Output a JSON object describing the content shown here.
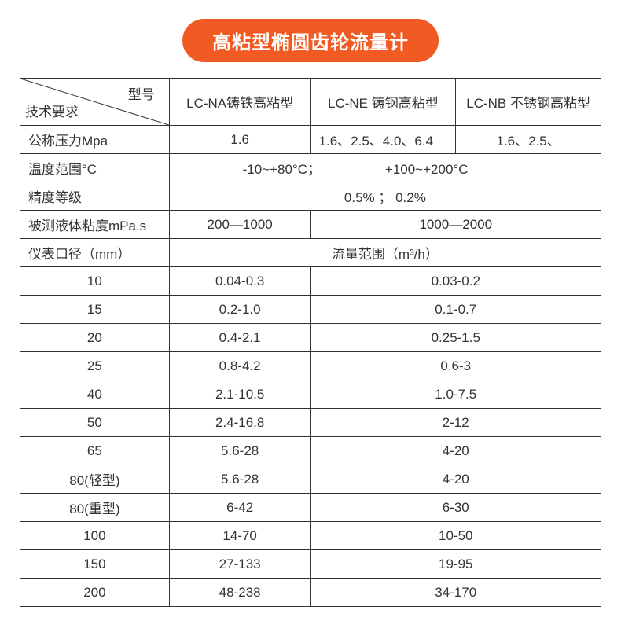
{
  "title": "高粘型椭圆齿轮流量计",
  "colors": {
    "accent": "#f15a22",
    "accent_text": "#ffffff",
    "border": "#333333",
    "text": "#333333",
    "background": "#ffffff"
  },
  "header_cell": {
    "top_label": "型号",
    "bottom_label": "技术要求"
  },
  "model_columns": [
    "LC-NA铸铁高粘型",
    "LC-NE 铸钢高粘型",
    "LC-NB 不锈钢高粘型"
  ],
  "spec_rows": {
    "pressure": {
      "label": "公称压力Mpa",
      "values": [
        "1.6",
        "1.6、2.5、4.0、6.4",
        "1.6、2.5、"
      ]
    },
    "temperature": {
      "label": "温度范围°C",
      "value_left": "-10~+80°C；",
      "value_right": "+100~+200°C"
    },
    "accuracy": {
      "label": "精度等级",
      "value": "0.5%    ；    0.2%"
    },
    "viscosity": {
      "label": "被测液体粘度mPa.s",
      "value_a": "200—1000",
      "value_b": "1000—2000"
    }
  },
  "flow_header": {
    "left": "仪表口径（mm）",
    "right": "流量范围（m³/h）"
  },
  "flow_rows": [
    {
      "size": "10",
      "a": "0.04-0.3",
      "b": "0.03-0.2"
    },
    {
      "size": "15",
      "a": "0.2-1.0",
      "b": "0.1-0.7"
    },
    {
      "size": "20",
      "a": "0.4-2.1",
      "b": "0.25-1.5"
    },
    {
      "size": "25",
      "a": "0.8-4.2",
      "b": "0.6-3"
    },
    {
      "size": "40",
      "a": "2.1-10.5",
      "b": "1.0-7.5"
    },
    {
      "size": "50",
      "a": "2.4-16.8",
      "b": "2-12"
    },
    {
      "size": "65",
      "a": "5.6-28",
      "b": "4-20"
    },
    {
      "size": "80(轻型)",
      "a": "5.6-28",
      "b": "4-20"
    },
    {
      "size": "80(重型)",
      "a": "6-42",
      "b": "6-30"
    },
    {
      "size": "100",
      "a": "14-70",
      "b": "10-50"
    },
    {
      "size": "150",
      "a": "27-133",
      "b": "19-95"
    },
    {
      "size": "200",
      "a": "48-238",
      "b": "34-170"
    }
  ]
}
